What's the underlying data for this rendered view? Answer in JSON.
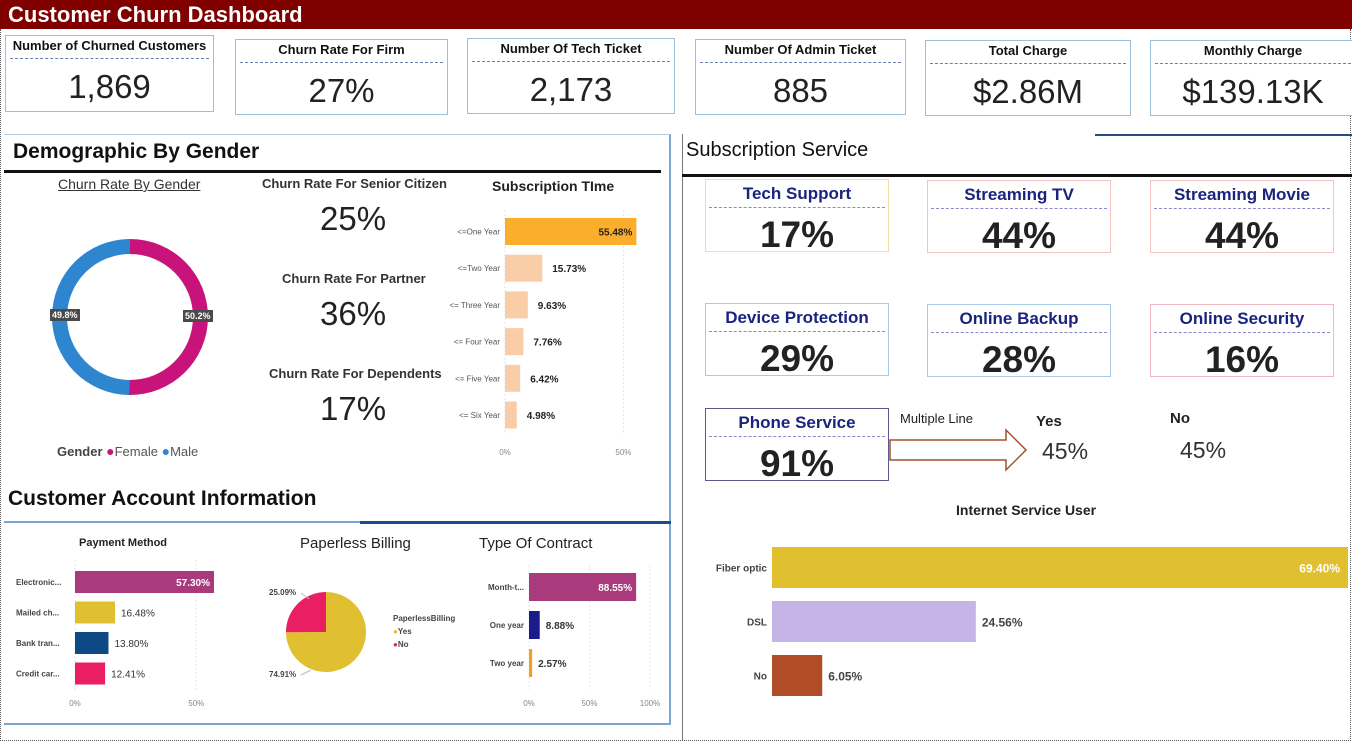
{
  "title": "Customer Churn Dashboard",
  "kpis": [
    {
      "label": "Number of Churned Customers",
      "value": "1,869"
    },
    {
      "label": "Churn Rate For Firm",
      "value": "27%"
    },
    {
      "label": "Number Of Tech Ticket",
      "value": "2,173"
    },
    {
      "label": "Number Of Admin Ticket",
      "value": "885"
    },
    {
      "label": "Total Charge",
      "value": "$2.86M"
    },
    {
      "label": "Monthly Charge",
      "value": "$139.13K"
    }
  ],
  "demographic": {
    "title": "Demographic By Gender",
    "gender_chart_title": "Churn Rate By Gender",
    "female_label": "50.2%",
    "male_label": "49.8%",
    "legend_title": "Gender",
    "legend_female": "Female",
    "legend_male": "Male",
    "senior_label": "Churn Rate For Senior Citizen",
    "senior_value": "25%",
    "partner_label": "Churn Rate For Partner",
    "partner_value": "36%",
    "dependents_label": "Churn Rate For Dependents",
    "dependents_value": "17%",
    "subscription_title": "Subscription TIme"
  },
  "account": {
    "title": "Customer Account Information",
    "payment_title": "Payment Method",
    "paperless_title": "Paperless Billing",
    "paperless_legend_title": "PaperlessBilling",
    "paperless_yes": "Yes",
    "paperless_no": "No",
    "contract_title": "Type Of Contract"
  },
  "subscription": {
    "title": "Subscription Service",
    "tiles": [
      {
        "label": "Tech Support",
        "value": "17%",
        "border": "#f2dca8"
      },
      {
        "label": "Streaming TV",
        "value": "44%",
        "border": "#f3c2c2"
      },
      {
        "label": "Streaming Movie",
        "value": "44%",
        "border": "#f3c2c2"
      },
      {
        "label": "Device Protection",
        "value": "29%",
        "border": "#a9c9e6"
      },
      {
        "label": "Online Backup",
        "value": "28%",
        "border": "#a9c9e6"
      },
      {
        "label": "Online Security",
        "value": "16%",
        "border": "#f0b8c0"
      }
    ],
    "phone_label": "Phone Service",
    "phone_value": "91%",
    "multiple_line_label": "Multiple Line",
    "yes_label": "Yes",
    "yes_value": "45%",
    "no_label": "No",
    "no_value": "45%",
    "internet_title": "Internet Service User"
  },
  "colors": {
    "header": "#800000",
    "female": "#c8137b",
    "male": "#2e86d1",
    "subscription_top": "#fbae2c",
    "subscription_rest": "#f9cda8",
    "fiber": "#e0c030",
    "dsl": "#c6b4e6",
    "internet_no": "#b04d28"
  },
  "chart_data": [
    {
      "type": "pie",
      "title": "Churn Rate By Gender",
      "categories": [
        "Female",
        "Male"
      ],
      "values": [
        50.2,
        49.8
      ],
      "legend": "bottom"
    },
    {
      "type": "bar",
      "title": "Subscription TIme",
      "orientation": "horizontal",
      "categories": [
        "<=One Year",
        "<=Two Year",
        "<= Three Year",
        "<= Four Year",
        "<= Five Year",
        "<= Six Year"
      ],
      "values": [
        55.48,
        15.73,
        9.63,
        7.76,
        6.42,
        4.98
      ],
      "value_labels": [
        "55.48%",
        "15.73%",
        "9.63%",
        "7.76%",
        "6.42%",
        "4.98%"
      ],
      "ticks": [
        "0%",
        "50%"
      ],
      "xlim": [
        0,
        57
      ]
    },
    {
      "type": "bar",
      "title": "Payment Method",
      "orientation": "horizontal",
      "categories": [
        "Electronic...",
        "Mailed ch...",
        "Bank tran...",
        "Credit car..."
      ],
      "values": [
        57.3,
        16.48,
        13.8,
        12.41
      ],
      "value_labels": [
        "57.30%",
        "16.48%",
        "13.80%",
        "12.41%"
      ],
      "colors": [
        "#a93a7c",
        "#e0c030",
        "#0d4a85",
        "#e91e63"
      ],
      "ticks": [
        "0%",
        "50%"
      ],
      "xlim": [
        0,
        57.3
      ]
    },
    {
      "type": "pie",
      "title": "Paperless Billing",
      "categories": [
        "Yes",
        "No"
      ],
      "values": [
        74.91,
        25.09
      ],
      "value_labels": [
        "74.91%",
        "25.09%"
      ],
      "colors": [
        "#e0c030",
        "#e91e63"
      ],
      "legend": "right"
    },
    {
      "type": "bar",
      "title": "Type Of Contract",
      "orientation": "horizontal",
      "categories": [
        "Month-t...",
        "One year",
        "Two year"
      ],
      "values": [
        88.55,
        8.88,
        2.57
      ],
      "value_labels": [
        "88.55%",
        "8.88%",
        "2.57%"
      ],
      "colors": [
        "#a93a7c",
        "#1b1b8c",
        "#f0a020"
      ],
      "ticks": [
        "0%",
        "50%",
        "100%"
      ],
      "xlim": [
        0,
        100
      ]
    },
    {
      "type": "bar",
      "title": "Internet Service User",
      "orientation": "horizontal",
      "categories": [
        "Fiber optic",
        "DSL",
        "No"
      ],
      "values": [
        69.4,
        24.56,
        6.05
      ],
      "value_labels": [
        "69.40%",
        "24.56%",
        "6.05%"
      ],
      "colors": [
        "#e0c030",
        "#c6b4e6",
        "#b04d28"
      ],
      "xlim": [
        0,
        69.4
      ]
    }
  ]
}
